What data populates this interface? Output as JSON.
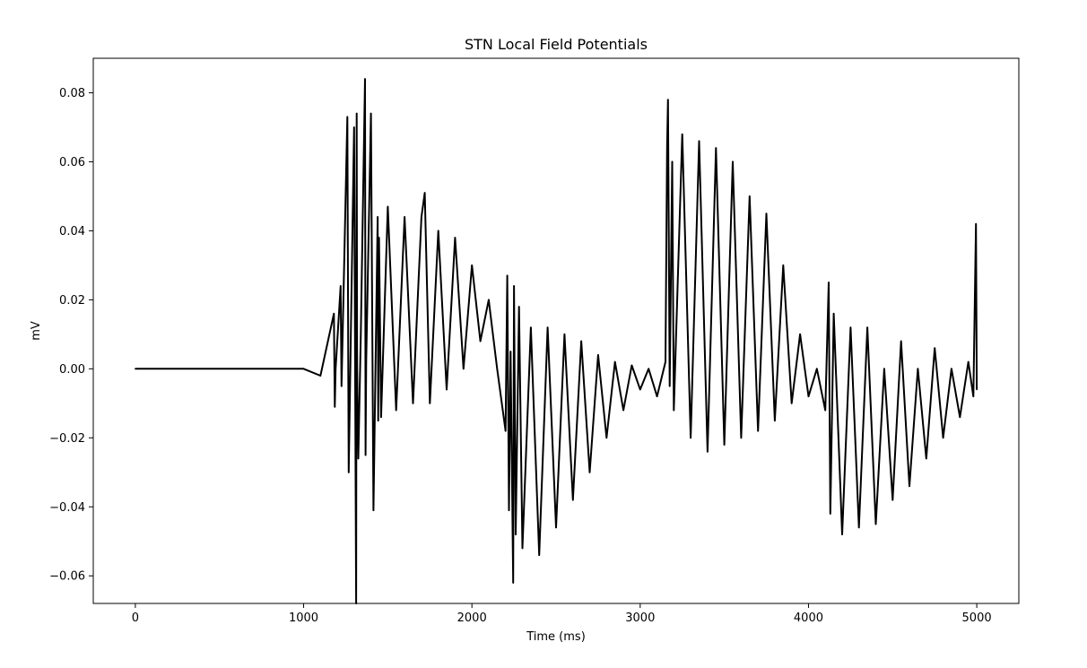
{
  "chart_data": {
    "type": "line",
    "title": "STN Local Field Potentials",
    "xlabel": "Time (ms)",
    "ylabel": "mV",
    "xlim": [
      -250,
      5250
    ],
    "ylim": [
      -0.068,
      0.09
    ],
    "grid": false,
    "legend": "none",
    "x_ticks": [
      0,
      1000,
      2000,
      3000,
      4000,
      5000
    ],
    "x_tick_labels": [
      "0",
      "1000",
      "2000",
      "3000",
      "4000",
      "5000"
    ],
    "y_ticks": [
      -0.06,
      -0.04,
      -0.02,
      0.0,
      0.02,
      0.04,
      0.06,
      0.08
    ],
    "y_tick_labels": [
      "−0.06",
      "−0.04",
      "−0.02",
      "0.00",
      "0.02",
      "0.04",
      "0.06",
      "0.08"
    ],
    "series": [
      {
        "color": "#000000",
        "x": [
          0,
          1000,
          1100,
          1180,
          1185,
          1190,
          1220,
          1225,
          1260,
          1265,
          1268,
          1300,
          1312,
          1315,
          1318,
          1325,
          1340,
          1365,
          1368,
          1372,
          1400,
          1415,
          1440,
          1443,
          1448,
          1460,
          1500,
          1550,
          1600,
          1650,
          1700,
          1720,
          1750,
          1800,
          1850,
          1900,
          1950,
          2000,
          2050,
          2100,
          2150,
          2200,
          2210,
          2220,
          2230,
          2245,
          2250,
          2260,
          2280,
          2300,
          2350,
          2400,
          2450,
          2500,
          2550,
          2600,
          2650,
          2700,
          2750,
          2800,
          2850,
          2900,
          2950,
          3000,
          3050,
          3100,
          3150,
          3160,
          3165,
          3175,
          3190,
          3200,
          3250,
          3300,
          3350,
          3400,
          3450,
          3500,
          3550,
          3600,
          3650,
          3700,
          3750,
          3800,
          3850,
          3900,
          3950,
          4000,
          4050,
          4100,
          4120,
          4130,
          4150,
          4200,
          4250,
          4300,
          4350,
          4400,
          4450,
          4500,
          4550,
          4600,
          4650,
          4700,
          4750,
          4800,
          4850,
          4900,
          4950,
          4980,
          4995,
          5000
        ],
        "y": [
          0.0,
          0.0,
          -0.002,
          0.016,
          -0.011,
          0.0,
          0.024,
          -0.005,
          0.073,
          0.002,
          -0.03,
          0.07,
          -0.068,
          0.074,
          0.0,
          -0.026,
          0.01,
          0.084,
          -0.025,
          0.002,
          0.074,
          -0.041,
          0.044,
          -0.015,
          0.038,
          -0.014,
          0.047,
          -0.012,
          0.044,
          -0.01,
          0.044,
          0.051,
          -0.01,
          0.04,
          -0.006,
          0.038,
          0.0,
          0.03,
          0.008,
          0.02,
          0.0,
          -0.018,
          0.027,
          -0.041,
          0.005,
          -0.062,
          0.024,
          -0.048,
          0.018,
          -0.052,
          0.012,
          -0.054,
          0.012,
          -0.046,
          0.01,
          -0.038,
          0.008,
          -0.03,
          0.004,
          -0.02,
          0.002,
          -0.012,
          0.001,
          -0.006,
          0.0,
          -0.008,
          0.002,
          0.064,
          0.078,
          -0.005,
          0.06,
          -0.012,
          0.068,
          -0.02,
          0.066,
          -0.024,
          0.064,
          -0.022,
          0.06,
          -0.02,
          0.05,
          -0.018,
          0.045,
          -0.015,
          0.03,
          -0.01,
          0.01,
          -0.008,
          0.0,
          -0.012,
          0.025,
          -0.042,
          0.016,
          -0.048,
          0.012,
          -0.046,
          0.012,
          -0.045,
          0.0,
          -0.038,
          0.008,
          -0.034,
          0.0,
          -0.026,
          0.006,
          -0.02,
          0.0,
          -0.014,
          0.002,
          -0.008,
          0.042,
          -0.006
        ]
      }
    ]
  }
}
